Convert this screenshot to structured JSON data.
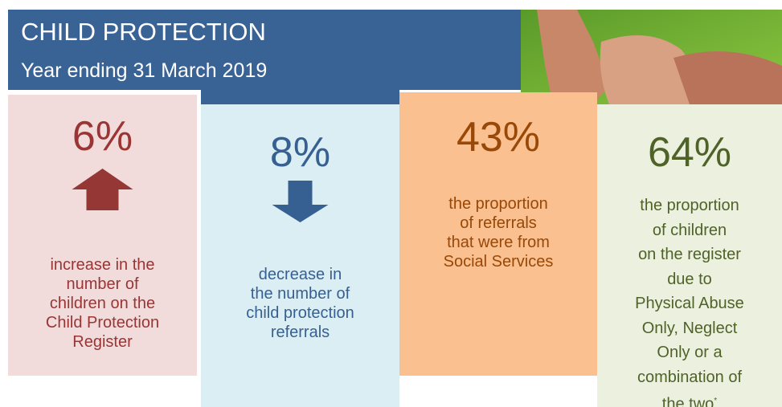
{
  "header": {
    "title": "CHILD PROTECTION",
    "subtitle": "Year ending 31 March 2019"
  },
  "stats": [
    {
      "figure": "6%",
      "lines": [
        "increase in the",
        "number of",
        "children on the",
        "Child Protection",
        "Register"
      ]
    },
    {
      "figure": "8%",
      "lines": [
        "decrease in",
        "the number of",
        "child protection",
        "referrals"
      ]
    },
    {
      "figure": "43%",
      "lines": [
        "the proportion",
        "of referrals",
        "that were from",
        "Social Services"
      ]
    },
    {
      "figure": "64%",
      "lines": [
        "the proportion",
        "of children",
        "on the register",
        "due to",
        "Physical Abuse",
        "Only, Neglect",
        "Only or a",
        "combination of",
        "the two"
      ],
      "note_mark": "*"
    }
  ]
}
